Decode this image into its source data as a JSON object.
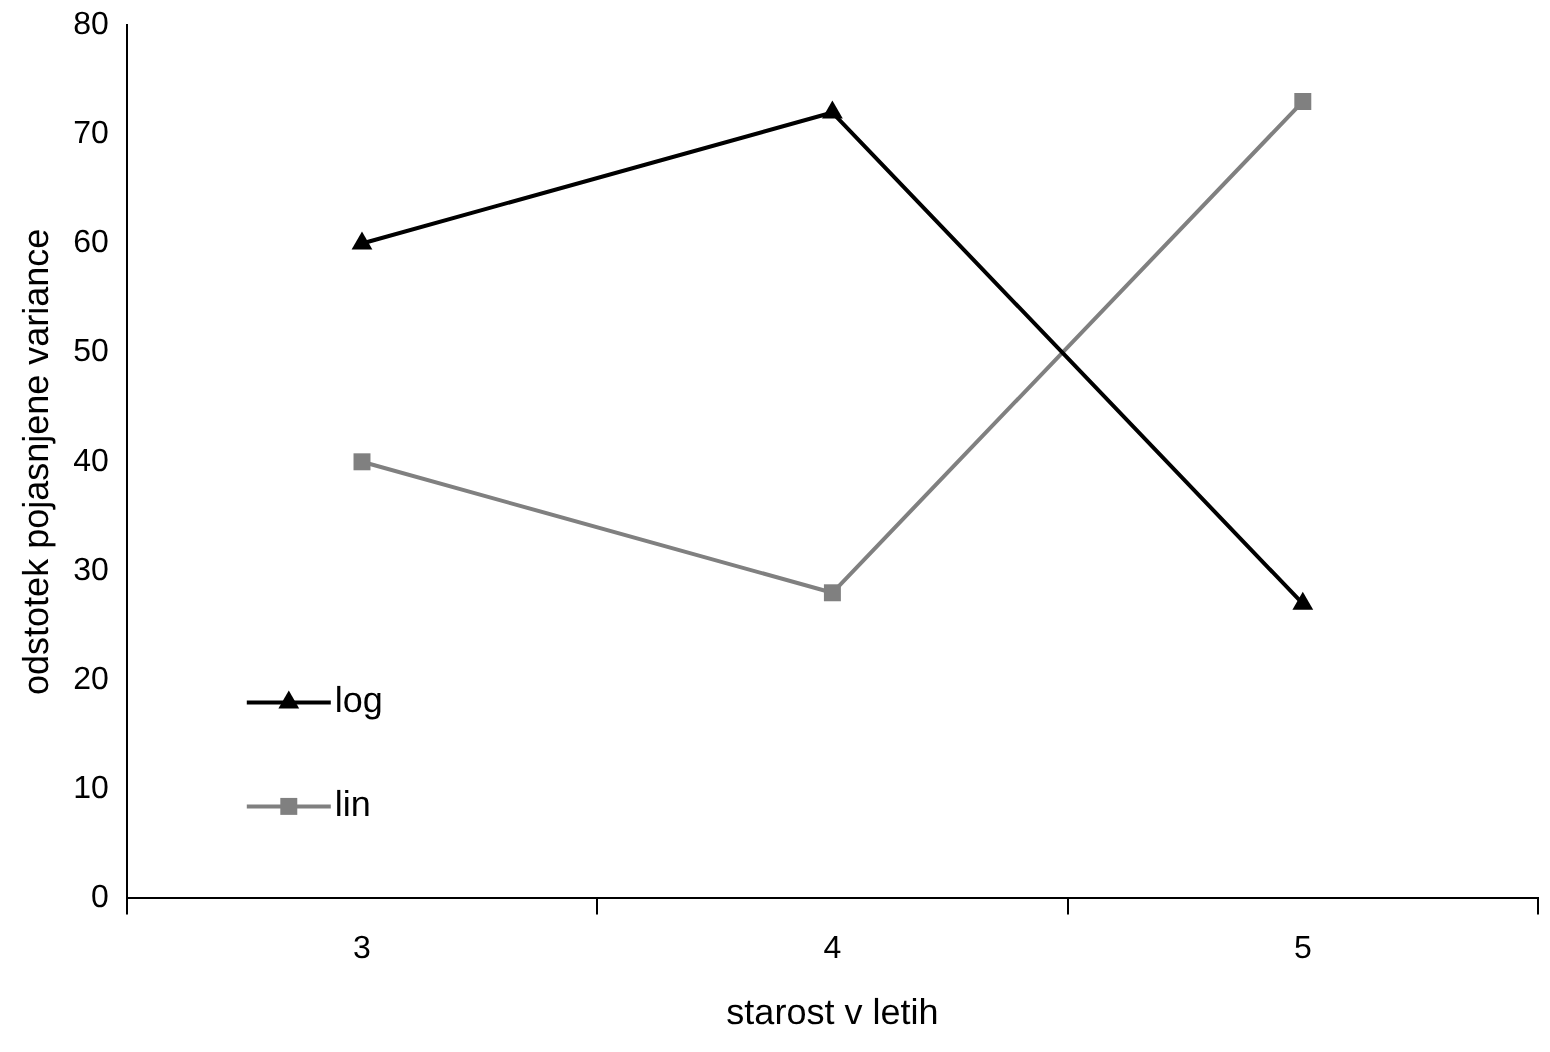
{
  "chart_data": {
    "type": "line",
    "xlabel": "starost v letih",
    "ylabel": "odstotek pojasnjene variance",
    "categories": [
      "3",
      "4",
      "5"
    ],
    "series": [
      {
        "name": "log",
        "color": "#000000",
        "marker": "triangle",
        "values": [
          60,
          72,
          27
        ]
      },
      {
        "name": "lin",
        "color": "#808080",
        "marker": "square",
        "values": [
          40,
          28,
          73
        ]
      }
    ],
    "ylim": [
      0,
      80
    ],
    "yticks": [
      0,
      10,
      20,
      30,
      40,
      50,
      60,
      70,
      80
    ],
    "grid": false,
    "legend": "bottom left",
    "line_style": "solid"
  }
}
